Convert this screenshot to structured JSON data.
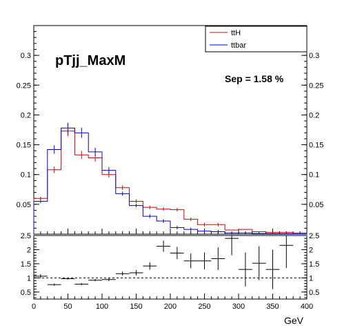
{
  "chart_data": [
    {
      "type": "line",
      "subtype": "step-histogram",
      "title": "pTjj_MaxM",
      "annotation": "Sep = 1.58 %",
      "xlabel": "",
      "ylabel": "",
      "xlim": [
        0,
        400
      ],
      "ylim": [
        0,
        0.35
      ],
      "bin_width": 20,
      "x": [
        0,
        20,
        40,
        60,
        80,
        100,
        120,
        140,
        160,
        180,
        200,
        220,
        240,
        260,
        280,
        300,
        320,
        340,
        360,
        380
      ],
      "yticks": [
        "0.05",
        "0.1",
        "0.15",
        "0.2",
        "0.25",
        "0.3"
      ],
      "legend": {
        "placement": "top-right",
        "entries": [
          "ttH",
          "ttbar"
        ]
      },
      "series": [
        {
          "name": "ttH",
          "color": "#d40000",
          "values": [
            0.06,
            0.108,
            0.173,
            0.133,
            0.128,
            0.1,
            0.078,
            0.055,
            0.045,
            0.042,
            0.041,
            0.025,
            0.016,
            0.016,
            0.007,
            0.008,
            0.004,
            0.003,
            0.003,
            0.002
          ]
        },
        {
          "name": "ttbar",
          "color": "#0000d0",
          "values": [
            0.055,
            0.142,
            0.178,
            0.17,
            0.138,
            0.107,
            0.068,
            0.048,
            0.03,
            0.022,
            0.011,
            0.008,
            0.005,
            0.004,
            0.002,
            0.002,
            0.001,
            0.001,
            0.0008,
            0.0005
          ]
        }
      ]
    },
    {
      "type": "scatter",
      "subtype": "ratio-with-errors",
      "xlabel": "GeV",
      "xlim": [
        0,
        400
      ],
      "ylim": [
        0.25,
        2.5
      ],
      "reference_line": 1,
      "xticks": [
        "0",
        "50",
        "100",
        "150",
        "200",
        "250",
        "300",
        "350",
        "400"
      ],
      "yticks": [
        "0.5",
        "1",
        "1.5",
        "2",
        "2.5"
      ],
      "x": [
        10,
        30,
        50,
        70,
        90,
        110,
        130,
        150,
        170,
        190,
        210,
        230,
        250,
        270,
        290,
        310,
        330,
        350,
        370
      ],
      "values": [
        1.06,
        0.76,
        0.97,
        0.78,
        0.92,
        0.94,
        1.15,
        1.18,
        1.42,
        2.12,
        1.88,
        1.6,
        1.6,
        1.68,
        2.4,
        1.3,
        1.52,
        1.3,
        2.15
      ],
      "errors": [
        0.07,
        0.04,
        0.03,
        0.04,
        0.04,
        0.05,
        0.07,
        0.09,
        0.13,
        0.2,
        0.22,
        0.26,
        0.3,
        0.4,
        0.6,
        0.6,
        0.6,
        0.7,
        0.8
      ]
    }
  ]
}
